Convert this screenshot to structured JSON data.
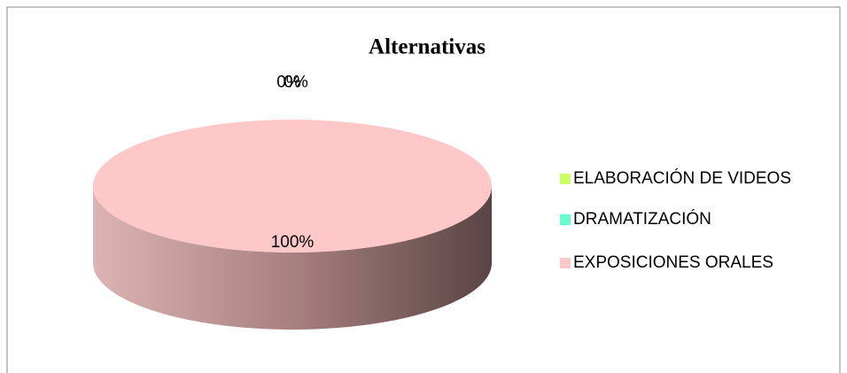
{
  "chart_data": {
    "type": "pie",
    "title": "Alternativas",
    "categories": [
      "ELABORACIÓN DE VIDEOS",
      "DRAMATIZACIÓN",
      "EXPOSICIONES ORALES"
    ],
    "values": [
      0,
      0,
      100
    ],
    "value_labels": [
      "0%",
      "0%",
      "100%"
    ],
    "colors": [
      "#ccff66",
      "#66ffcc",
      "#ffc8c8"
    ],
    "legend": "right"
  }
}
